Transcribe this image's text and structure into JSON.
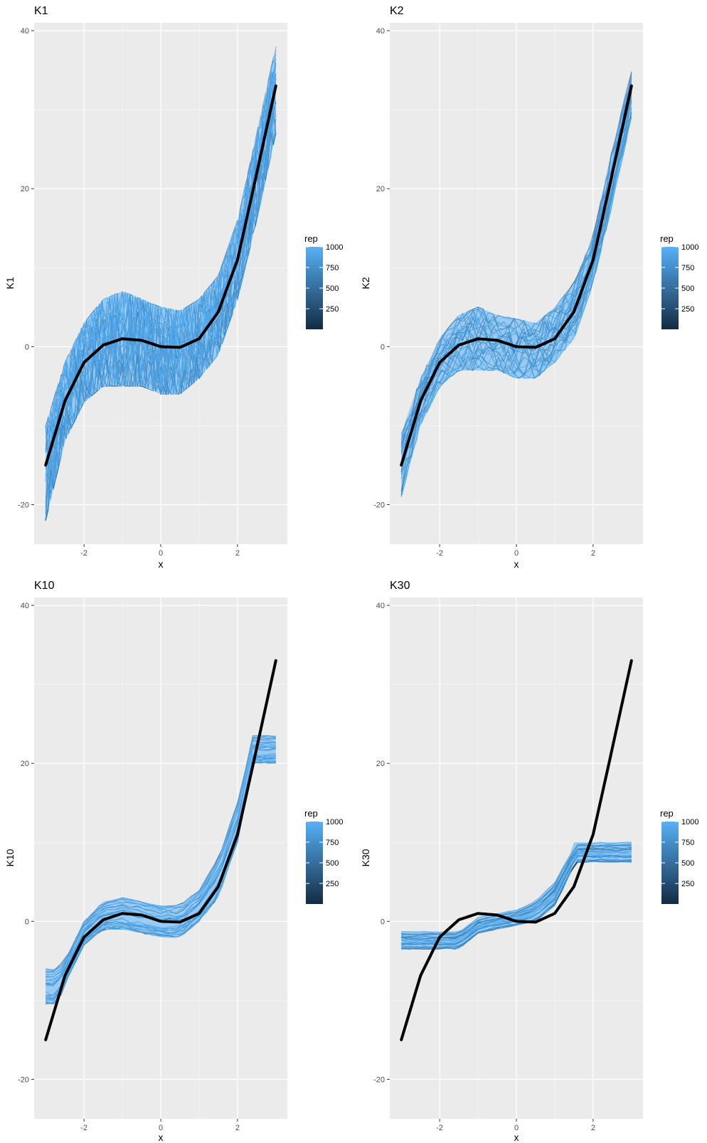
{
  "chart_data": [
    {
      "type": "line",
      "title": "K1",
      "xlabel": "x",
      "ylabel": "K1",
      "xlim": [
        -3.3,
        3.3
      ],
      "ylim": [
        -25,
        41
      ],
      "x_ticks": [
        -2,
        0,
        2
      ],
      "x_tick_labels": [
        "-2",
        "0",
        "2"
      ],
      "y_ticks": [
        -20,
        0,
        20,
        40
      ],
      "y_tick_labels": [
        "-20",
        "0",
        "20",
        "40"
      ],
      "grid": true,
      "legend": {
        "title": "rep",
        "position": "right",
        "labels": [
          "1000",
          "750",
          "500",
          "250"
        ],
        "values": [
          1000,
          750,
          500,
          250
        ],
        "range": [
          1,
          1000
        ],
        "color_low": "#132B43",
        "color_high": "#56B1F7"
      },
      "truth": {
        "name": "",
        "color": "#000000",
        "x": [
          -3,
          -2.5,
          -2,
          -1.5,
          -1,
          -0.5,
          0,
          0.5,
          1,
          1.5,
          2,
          2.5,
          3
        ],
        "y": [
          -15,
          -6.9,
          -2,
          0.2,
          1,
          0.8,
          0,
          -0.1,
          1,
          4.4,
          11,
          21.9,
          33
        ]
      },
      "series": [
        {
          "name": "",
          "x": [
            -3,
            -2.5,
            -2,
            -1.5,
            -1,
            -0.5,
            0,
            0.5,
            1,
            1.5,
            2,
            2.5,
            3
          ],
          "upper": [
            -10,
            -2,
            3,
            6,
            7,
            6,
            5,
            4.5,
            6,
            9,
            16,
            27,
            38
          ],
          "lower": [
            -22,
            -12,
            -7,
            -5,
            -5,
            -5,
            -6,
            -6,
            -4,
            -1,
            6,
            16,
            27
          ]
        }
      ]
    },
    {
      "type": "line",
      "title": "K2",
      "xlabel": "x",
      "ylabel": "K2",
      "xlim": [
        -3.3,
        3.3
      ],
      "ylim": [
        -25,
        41
      ],
      "x_ticks": [
        -2,
        0,
        2
      ],
      "x_tick_labels": [
        "-2",
        "0",
        "2"
      ],
      "y_ticks": [
        -20,
        0,
        20,
        40
      ],
      "y_tick_labels": [
        "-20",
        "0",
        "20",
        "40"
      ],
      "grid": true,
      "legend": {
        "title": "rep",
        "position": "right",
        "labels": [
          "1000",
          "750",
          "500",
          "250"
        ],
        "values": [
          1000,
          750,
          500,
          250
        ],
        "range": [
          1,
          1000
        ],
        "color_low": "#132B43",
        "color_high": "#56B1F7"
      },
      "truth": {
        "name": "",
        "color": "#000000",
        "x": [
          -3,
          -2.5,
          -2,
          -1.5,
          -1,
          -0.5,
          0,
          0.5,
          1,
          1.5,
          2,
          2.5,
          3
        ],
        "y": [
          -15,
          -6.9,
          -2,
          0.2,
          1,
          0.8,
          0,
          -0.1,
          1,
          4.4,
          11,
          21.9,
          33
        ]
      },
      "series": [
        {
          "name": "",
          "x": [
            -3,
            -2.5,
            -2,
            -1.5,
            -1,
            -0.5,
            0,
            0.5,
            1,
            1.5,
            2,
            2.5,
            3
          ],
          "upper": [
            -11,
            -4,
            1,
            4,
            5,
            4,
            3.5,
            3,
            5,
            8,
            14,
            25,
            35
          ],
          "lower": [
            -19,
            -10,
            -5,
            -3,
            -3,
            -3,
            -4,
            -4,
            -2,
            1,
            8,
            18,
            29
          ]
        }
      ]
    },
    {
      "type": "line",
      "title": "K10",
      "xlabel": "x",
      "ylabel": "K10",
      "xlim": [
        -3.3,
        3.3
      ],
      "ylim": [
        -25,
        41
      ],
      "x_ticks": [
        -2,
        0,
        2
      ],
      "x_tick_labels": [
        "-2",
        "0",
        "2"
      ],
      "y_ticks": [
        -20,
        0,
        20,
        40
      ],
      "y_tick_labels": [
        "-20",
        "0",
        "20",
        "40"
      ],
      "grid": true,
      "legend": {
        "title": "rep",
        "position": "right",
        "labels": [
          "1000",
          "750",
          "500",
          "250"
        ],
        "values": [
          1000,
          750,
          500,
          250
        ],
        "range": [
          1,
          1000
        ],
        "color_low": "#132B43",
        "color_high": "#56B1F7"
      },
      "truth": {
        "name": "",
        "color": "#000000",
        "x": [
          -3,
          -2.5,
          -2,
          -1.5,
          -1,
          -0.5,
          0,
          0.5,
          1,
          1.5,
          2,
          2.5,
          3
        ],
        "y": [
          -15,
          -6.9,
          -2,
          0.2,
          1,
          0.8,
          0,
          -0.1,
          1,
          4.4,
          11,
          21.9,
          33
        ]
      },
      "series": [
        {
          "name": "",
          "x": [
            -3,
            -2.7,
            -2.4,
            -2,
            -1.5,
            -1,
            -0.5,
            0,
            0.5,
            1,
            1.5,
            2,
            2.4,
            2.5,
            3
          ],
          "upper": [
            -6,
            -6,
            -4,
            0,
            2.5,
            3,
            2.5,
            2,
            2,
            4,
            8,
            15,
            23.5,
            23.5,
            23.5
          ],
          "lower": [
            -10.5,
            -10.5,
            -7,
            -3,
            -1,
            -1,
            -1.5,
            -2,
            -2,
            0,
            3,
            10,
            20,
            20,
            20
          ]
        }
      ]
    },
    {
      "type": "line",
      "title": "K30",
      "xlabel": "x",
      "ylabel": "K30",
      "xlim": [
        -3.3,
        3.3
      ],
      "ylim": [
        -25,
        41
      ],
      "x_ticks": [
        -2,
        0,
        2
      ],
      "x_tick_labels": [
        "-2",
        "0",
        "2"
      ],
      "y_ticks": [
        -20,
        0,
        20,
        40
      ],
      "y_tick_labels": [
        "-20",
        "0",
        "20",
        "40"
      ],
      "grid": true,
      "legend": {
        "title": "rep",
        "position": "right",
        "labels": [
          "1000",
          "750",
          "500",
          "250"
        ],
        "values": [
          1000,
          750,
          500,
          250
        ],
        "range": [
          1,
          1000
        ],
        "color_low": "#132B43",
        "color_high": "#56B1F7"
      },
      "truth": {
        "name": "",
        "color": "#000000",
        "x": [
          -3,
          -2.5,
          -2,
          -1.5,
          -1,
          -0.5,
          0,
          0.5,
          1,
          1.5,
          2,
          2.5,
          3
        ],
        "y": [
          -15,
          -6.9,
          -2,
          0.2,
          1,
          0.8,
          0,
          -0.1,
          1,
          4.4,
          11,
          21.9,
          33
        ]
      },
      "series": [
        {
          "name": "",
          "x": [
            -3,
            -1.5,
            -1,
            -0.5,
            0,
            0.5,
            1,
            1.4,
            1.5,
            3
          ],
          "upper": [
            -1.3,
            -1.3,
            0.5,
            1,
            1.5,
            2.5,
            5,
            8.5,
            10,
            10
          ],
          "lower": [
            -3.5,
            -3.5,
            -1.5,
            -1,
            -0.5,
            0,
            2,
            6,
            7.5,
            7.5
          ]
        }
      ]
    }
  ]
}
